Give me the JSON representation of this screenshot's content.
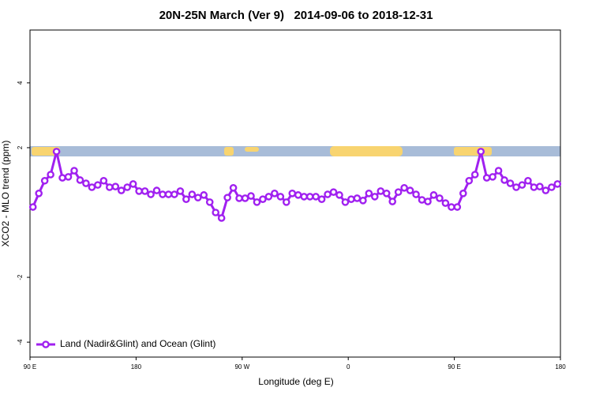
{
  "chart_data": {
    "type": "line",
    "title": "20N-25N March (Ver 9)   2014-09-06 to 2018-12-31",
    "x_label": "Longitude (deg E)",
    "y_label": "XCO2 - MLO trend (ppm)",
    "xlim": [
      90,
      540
    ],
    "xticks": [
      {
        "value": 90,
        "label": "90 E"
      },
      {
        "value": 180,
        "label": "180"
      },
      {
        "value": 270,
        "label": "90 W"
      },
      {
        "value": 360,
        "label": "0"
      },
      {
        "value": 450,
        "label": "90 E"
      },
      {
        "value": 540,
        "label": "180"
      }
    ],
    "ylim": [
      -4.46,
      5.63
    ],
    "yticks": [
      -4,
      -2,
      2,
      4
    ],
    "legend_position": "bottom-left",
    "x": [
      92.5,
      97.5,
      102.5,
      107.5,
      112.5,
      117.5,
      122.5,
      127.5,
      132.5,
      137.5,
      142.5,
      147.5,
      152.5,
      157.5,
      162.5,
      167.5,
      172.5,
      177.5,
      182.5,
      187.5,
      192.5,
      197.5,
      202.5,
      207.5,
      212.5,
      217.5,
      222.5,
      227.5,
      232.5,
      237.5,
      242.5,
      247.5,
      252.5,
      257.5,
      262.5,
      267.5,
      272.5,
      277.5,
      282.5,
      287.5,
      292.5,
      297.5,
      302.5,
      307.5,
      312.5,
      317.5,
      322.5,
      327.5,
      332.5,
      337.5,
      342.5,
      347.5,
      352.5,
      357.5,
      362.5,
      367.5,
      372.5,
      377.5,
      382.5,
      387.5,
      392.5,
      397.5,
      402.5,
      407.5,
      412.5,
      417.5,
      422.5,
      427.5,
      432.5,
      437.5,
      442.5,
      447.5,
      452.5,
      457.5,
      462.5,
      467.5,
      472.5,
      477.5,
      482.5,
      487.5,
      492.5,
      497.5,
      502.5,
      507.5,
      512.5,
      517.5,
      522.5,
      527.5,
      532.5,
      537.5
    ],
    "series": [
      {
        "name": "Land (Nadir&Glint) and Ocean (Glint)",
        "color": "#a020f0",
        "values": [
          0.17,
          0.59,
          0.98,
          1.17,
          1.88,
          1.07,
          1.1,
          1.29,
          1.0,
          0.9,
          0.78,
          0.85,
          0.98,
          0.78,
          0.8,
          0.68,
          0.78,
          0.88,
          0.66,
          0.66,
          0.56,
          0.68,
          0.56,
          0.56,
          0.56,
          0.66,
          0.41,
          0.56,
          0.46,
          0.54,
          0.32,
          0.0,
          -0.17,
          0.46,
          0.76,
          0.44,
          0.44,
          0.51,
          0.32,
          0.41,
          0.49,
          0.59,
          0.49,
          0.32,
          0.59,
          0.54,
          0.49,
          0.49,
          0.49,
          0.41,
          0.56,
          0.63,
          0.54,
          0.32,
          0.41,
          0.44,
          0.37,
          0.59,
          0.49,
          0.66,
          0.59,
          0.34,
          0.63,
          0.76,
          0.68,
          0.56,
          0.39,
          0.34,
          0.54,
          0.44,
          0.29,
          0.17,
          0.17,
          0.59,
          0.98,
          1.17,
          1.88,
          1.07,
          1.1,
          1.29,
          1.0,
          0.9,
          0.78,
          0.85,
          0.98,
          0.78,
          0.8,
          0.68,
          0.78,
          0.88
        ]
      }
    ]
  }
}
